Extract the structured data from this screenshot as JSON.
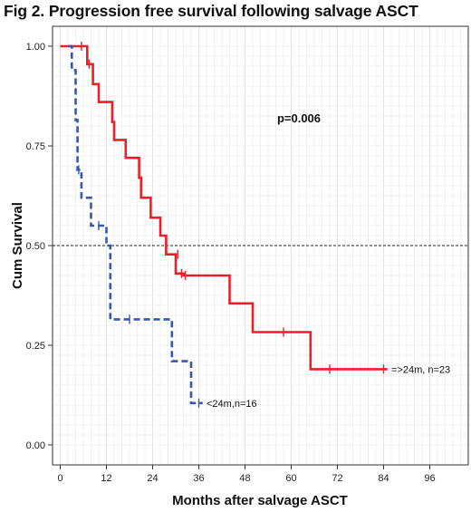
{
  "chart_data": {
    "type": "line",
    "title": "Fig 2. Progression free survival following salvage ASCT",
    "xlabel": "Months after salvage ASCT",
    "ylabel": "Cum Survival",
    "xlim": [
      -2,
      106
    ],
    "ylim": [
      -0.05,
      1.05
    ],
    "x_ticks": [
      "0",
      "12",
      "24",
      "36",
      "48",
      "60",
      "72",
      "84",
      "96"
    ],
    "y_ticks": [
      "0.00",
      "0.25",
      "0.50",
      "0.75",
      "1.00"
    ],
    "reference_line_y": 0.5,
    "grid": true,
    "p_value": "p=0.006",
    "series": [
      {
        "name": "=>24m, n=23",
        "color": "#e8202a",
        "style": "solid",
        "steps": [
          [
            0,
            1.0
          ],
          [
            7,
            1.0
          ],
          [
            7,
            0.955
          ],
          [
            8.5,
            0.955
          ],
          [
            8.5,
            0.905
          ],
          [
            10,
            0.905
          ],
          [
            10,
            0.86
          ],
          [
            13.5,
            0.86
          ],
          [
            13.5,
            0.81
          ],
          [
            14,
            0.81
          ],
          [
            14,
            0.765
          ],
          [
            17,
            0.765
          ],
          [
            17,
            0.72
          ],
          [
            20.5,
            0.72
          ],
          [
            20.5,
            0.67
          ],
          [
            21,
            0.67
          ],
          [
            21,
            0.62
          ],
          [
            23.5,
            0.62
          ],
          [
            23.5,
            0.57
          ],
          [
            26,
            0.57
          ],
          [
            26,
            0.525
          ],
          [
            27.5,
            0.525
          ],
          [
            27.5,
            0.478
          ],
          [
            30,
            0.478
          ],
          [
            30,
            0.43
          ],
          [
            32,
            0.43
          ],
          [
            32,
            0.425
          ],
          [
            44,
            0.425
          ],
          [
            44,
            0.355
          ],
          [
            50,
            0.355
          ],
          [
            50,
            0.283
          ],
          [
            65,
            0.283
          ],
          [
            65,
            0.19
          ],
          [
            85,
            0.19
          ]
        ],
        "censors": [
          [
            5.5,
            1.0
          ],
          [
            7.5,
            0.955
          ],
          [
            30.5,
            0.478
          ],
          [
            31.5,
            0.43
          ],
          [
            32.5,
            0.425
          ],
          [
            58,
            0.283
          ],
          [
            70,
            0.19
          ],
          [
            84,
            0.19
          ]
        ],
        "label_pos": [
          86,
          0.19
        ]
      },
      {
        "name": "<24m,n=16",
        "color": "#3a57a8",
        "style": "dashed",
        "steps": [
          [
            2,
            1.0
          ],
          [
            3,
            1.0
          ],
          [
            3,
            0.94
          ],
          [
            4,
            0.94
          ],
          [
            4,
            0.815
          ],
          [
            4.5,
            0.815
          ],
          [
            4.5,
            0.69
          ],
          [
            5.5,
            0.69
          ],
          [
            5.5,
            0.62
          ],
          [
            8,
            0.62
          ],
          [
            8,
            0.55
          ],
          [
            12,
            0.55
          ],
          [
            12,
            0.5
          ],
          [
            13,
            0.5
          ],
          [
            13,
            0.315
          ],
          [
            29,
            0.315
          ],
          [
            29,
            0.21
          ],
          [
            34,
            0.21
          ],
          [
            34,
            0.105
          ],
          [
            37,
            0.105
          ]
        ],
        "censors": [
          [
            4.8,
            0.69
          ],
          [
            10,
            0.55
          ],
          [
            18,
            0.315
          ],
          [
            36,
            0.105
          ]
        ],
        "label_pos": [
          38,
          0.105
        ]
      }
    ]
  }
}
